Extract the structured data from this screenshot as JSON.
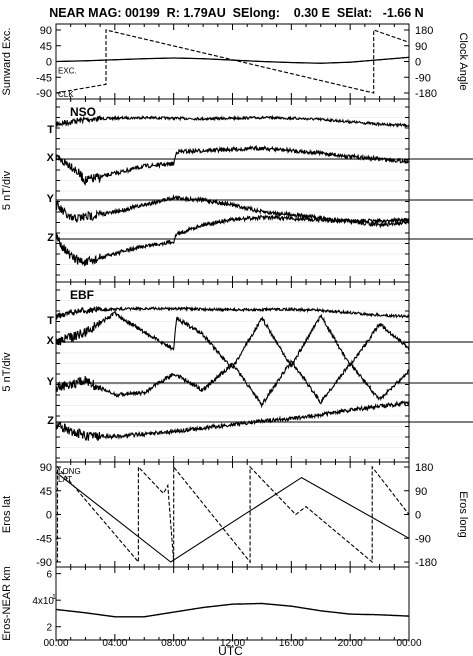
{
  "header": {
    "title": "NEAR MAG: 00199  R: 1.79AU  SElong:    0.30 E  SElat:   -1.66 N"
  },
  "chart_data": [
    {
      "type": "line",
      "panel": "sunward-clock",
      "ylabel_left": "Sunward Exc.",
      "ylabel_right": "Clock Angle",
      "left_ticks": [
        "90",
        "45",
        "0",
        "-45",
        "-90"
      ],
      "right_ticks": [
        "180",
        "90",
        "0",
        "-90",
        "-180"
      ],
      "ylim_left": [
        -90,
        90
      ],
      "ylim_right": [
        -180,
        180
      ],
      "labels": [
        "EXC.",
        "CLK"
      ],
      "series": [
        {
          "name": "EXC.",
          "axis": "left",
          "x": [
            0,
            2,
            4,
            6,
            8,
            10,
            12,
            14,
            16,
            18,
            20,
            22,
            24
          ],
          "values": [
            0,
            2,
            5,
            8,
            10,
            8,
            4,
            0,
            -3,
            -5,
            -2,
            5,
            12
          ]
        },
        {
          "name": "CLK",
          "axis": "right",
          "x": [
            0,
            3.4,
            3.4,
            21.6,
            21.6,
            24
          ],
          "values": [
            -180,
            -130,
            180,
            -180,
            180,
            110
          ]
        }
      ]
    },
    {
      "type": "line",
      "panel": "nso",
      "label": "NSO",
      "ylabel": "5 nT/div",
      "component_labels": [
        "T",
        "X",
        "Y",
        "Z"
      ],
      "series": [
        {
          "name": "T",
          "x": [
            0,
            1,
            2,
            4,
            6,
            8,
            10,
            12,
            14,
            16,
            18,
            20,
            22,
            24
          ],
          "values": [
            0.4,
            0.6,
            0.8,
            0.9,
            0.95,
            0.9,
            0.85,
            0.9,
            0.95,
            0.9,
            0.8,
            0.6,
            0.4,
            0.3
          ]
        },
        {
          "name": "X",
          "x": [
            0,
            1,
            2,
            4,
            6,
            8,
            8.2,
            10,
            12,
            14,
            16,
            18,
            20,
            22,
            24
          ],
          "values": [
            0,
            -0.5,
            -1.8,
            -1.2,
            -0.6,
            -0.4,
            0.6,
            0.7,
            0.8,
            0.9,
            0.7,
            0.5,
            0.2,
            0,
            -0.2
          ]
        },
        {
          "name": "Y",
          "x": [
            0,
            1,
            2,
            4,
            6,
            8,
            10,
            12,
            14,
            16,
            18,
            20,
            22,
            24
          ],
          "values": [
            -0.4,
            -1.6,
            -1.4,
            -1.0,
            -0.4,
            0.2,
            0,
            -0.4,
            -1,
            -1.2,
            -1.5,
            -1.8,
            -2.1,
            -1.8
          ]
        },
        {
          "name": "Z",
          "x": [
            0,
            1,
            2,
            4,
            6,
            8,
            8.2,
            10,
            12,
            14,
            16,
            18,
            20,
            22,
            24
          ],
          "values": [
            0.2,
            -1.5,
            -2.0,
            -1.2,
            -0.6,
            -0.2,
            0.4,
            1.2,
            1.6,
            1.8,
            1.7,
            1.6,
            1.5,
            1.5,
            1.6
          ]
        }
      ]
    },
    {
      "type": "line",
      "panel": "ebf",
      "label": "EBF",
      "ylabel": "5 nT/div",
      "component_labels": [
        "T",
        "X",
        "Y",
        "Z"
      ],
      "series": [
        {
          "name": "T",
          "x": [
            0,
            1,
            2,
            4,
            6,
            8,
            10,
            12,
            14,
            16,
            18,
            20,
            22,
            24
          ],
          "values": [
            0.3,
            0.6,
            0.8,
            0.9,
            0.95,
            0.95,
            0.9,
            0.85,
            0.85,
            0.9,
            0.8,
            0.6,
            0.4,
            0.3
          ]
        },
        {
          "name": "X",
          "x": [
            0,
            2,
            4,
            6,
            8,
            8.2,
            10,
            12,
            14,
            16,
            18,
            20,
            22,
            24
          ],
          "values": [
            0,
            0.8,
            2.4,
            0.8,
            -0.6,
            2.0,
            0.6,
            -2.2,
            2.0,
            -2.0,
            2.2,
            -2.0,
            1.5,
            -0.5
          ]
        },
        {
          "name": "Y",
          "x": [
            0,
            2,
            4,
            6,
            8,
            10,
            12,
            14,
            16,
            18,
            20,
            22,
            24
          ],
          "values": [
            -0.4,
            0.2,
            -1.0,
            -0.8,
            0.8,
            -0.6,
            1.6,
            -1.8,
            1.8,
            -1.6,
            1.6,
            -1.4,
            1.0
          ]
        },
        {
          "name": "Z",
          "x": [
            0,
            2,
            4,
            6,
            8,
            10,
            12,
            14,
            16,
            18,
            20,
            22,
            24
          ],
          "values": [
            -0.2,
            -1.2,
            -1.2,
            -1.0,
            -0.8,
            -0.5,
            -0.2,
            0.1,
            0.3,
            0.6,
            1.0,
            1.3,
            1.6
          ]
        }
      ]
    },
    {
      "type": "line",
      "panel": "eros-lat-long",
      "ylabel_left": "Eros lat",
      "ylabel_right": "Eros long",
      "left_ticks": [
        "90",
        "45",
        "0",
        "-45",
        "-90"
      ],
      "right_ticks": [
        "180",
        "90",
        "0",
        "-90",
        "-180"
      ],
      "ylim_left": [
        -90,
        90
      ],
      "ylim_right": [
        -180,
        180
      ],
      "labels": [
        "LONG",
        "LAT"
      ],
      "series": [
        {
          "name": "LAT",
          "axis": "left",
          "x": [
            0,
            7.8,
            16.7,
            24
          ],
          "values": [
            80,
            -90,
            70,
            -45
          ]
        },
        {
          "name": "LONG",
          "axis": "right",
          "x": [
            0,
            0.1,
            0.1,
            5.6,
            5.6,
            7.3,
            7.6,
            8.0,
            8.0,
            13.2,
            13.2,
            16.3,
            17,
            21.5,
            21.5,
            24
          ],
          "values": [
            -180,
            -180,
            180,
            -180,
            180,
            80,
            110,
            -180,
            180,
            -180,
            180,
            0,
            30,
            -180,
            180,
            0
          ]
        }
      ]
    },
    {
      "type": "line",
      "panel": "eros-near-km",
      "ylabel": "Eros-NEAR km",
      "left_ticks": [
        "6",
        "4x10",
        "2"
      ],
      "tick_exponent": "1",
      "ylim": [
        1,
        6.5
      ],
      "series": [
        {
          "name": "distance",
          "x": [
            0,
            2,
            4,
            6,
            8,
            10,
            12,
            14,
            16,
            18,
            20,
            22,
            24
          ],
          "values": [
            3.3,
            3.05,
            2.75,
            2.75,
            3.1,
            3.45,
            3.7,
            3.75,
            3.55,
            3.2,
            2.95,
            2.9,
            2.8
          ]
        }
      ]
    }
  ],
  "xaxis": {
    "label": "UTC",
    "ticks": [
      "00:00",
      "04:00",
      "08:00",
      "12:00",
      "16:00",
      "20:00",
      "00:00"
    ],
    "range_hours": [
      0,
      24
    ]
  }
}
